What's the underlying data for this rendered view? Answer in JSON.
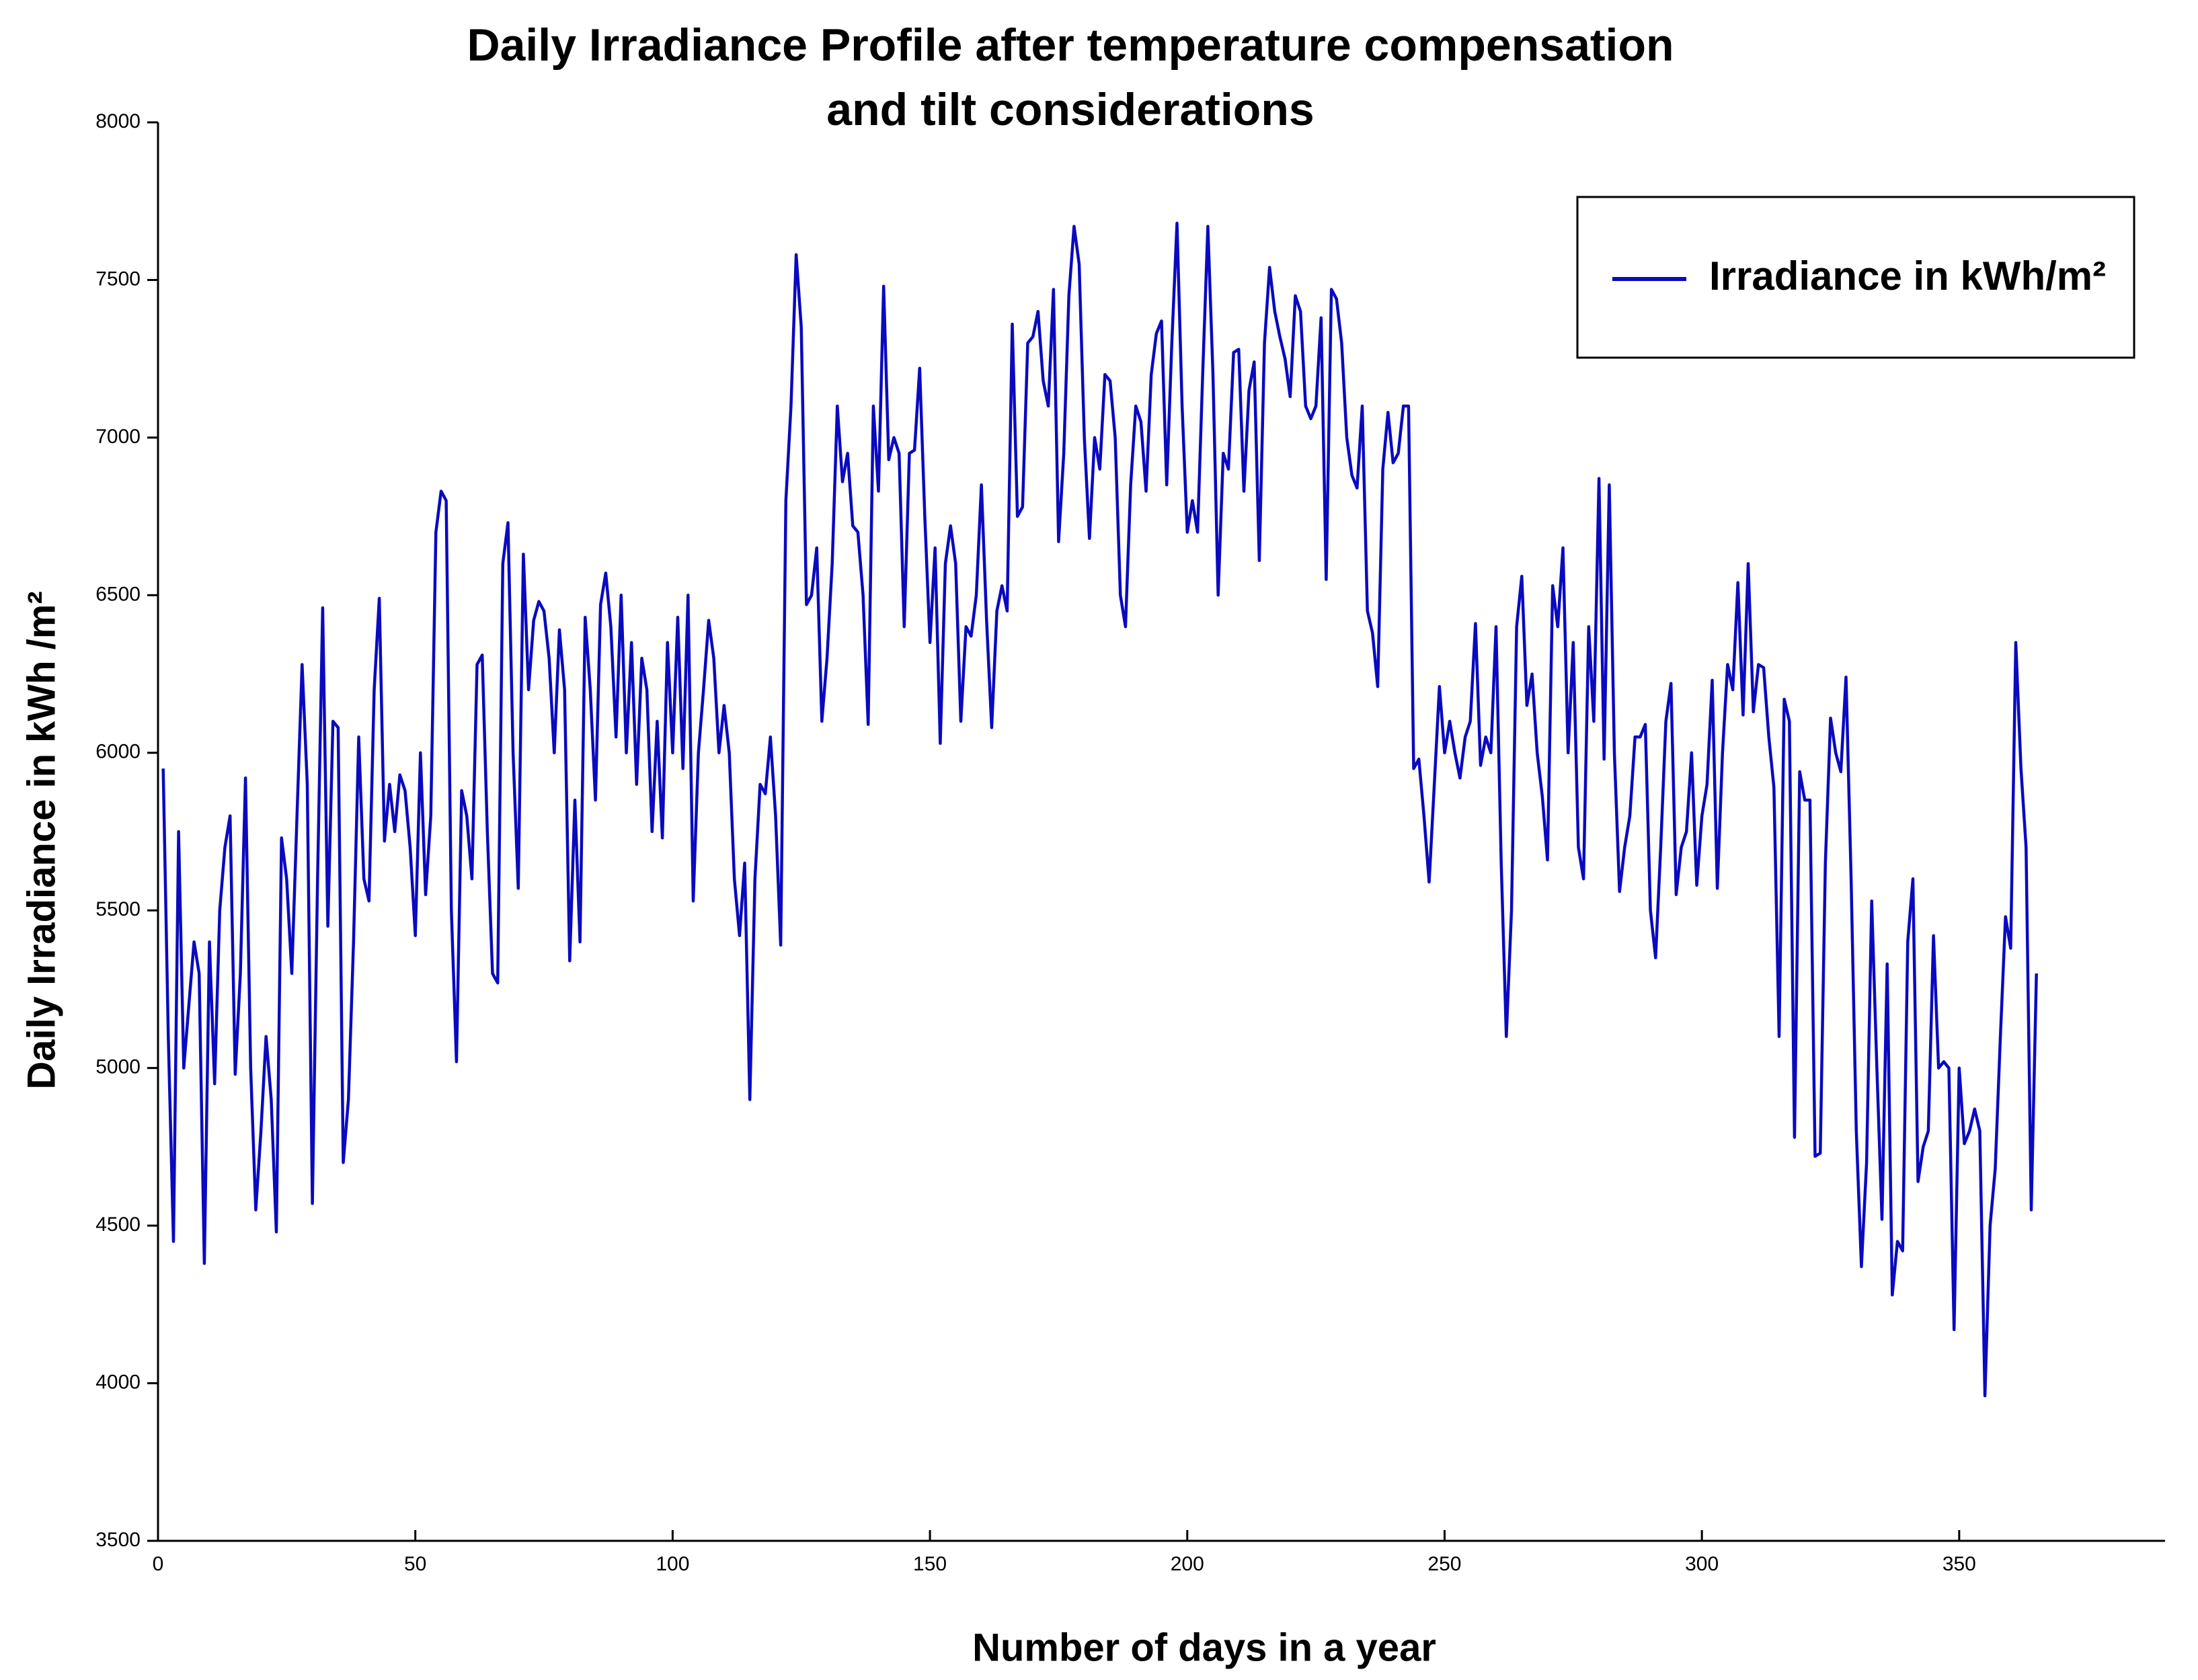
{
  "chart_data": {
    "type": "line",
    "title": [
      "Daily Irradiance Profile after temperature compensation",
      "and tilt considerations"
    ],
    "xlabel": "Number of days in a year",
    "ylabel": "Daily Irradiance in kWh /m²",
    "xlim": [
      0,
      390
    ],
    "xticks": [
      0,
      50,
      100,
      150,
      200,
      250,
      300,
      350
    ],
    "ylim": [
      3500,
      8000
    ],
    "yticks": [
      3500,
      4000,
      4500,
      5000,
      5500,
      6000,
      6500,
      7000,
      7500,
      8000
    ],
    "legend": "upper right",
    "x": [
      1,
      2,
      3,
      4,
      5,
      6,
      7,
      8,
      9,
      10,
      11,
      12,
      13,
      14,
      15,
      16,
      17,
      18,
      19,
      20,
      21,
      22,
      23,
      24,
      25,
      26,
      27,
      28,
      29,
      30,
      31,
      32,
      33,
      34,
      35,
      36,
      37,
      38,
      39,
      40,
      41,
      42,
      43,
      44,
      45,
      46,
      47,
      48,
      49,
      50,
      51,
      52,
      53,
      54,
      55,
      56,
      57,
      58,
      59,
      60,
      61,
      62,
      63,
      64,
      65,
      66,
      67,
      68,
      69,
      70,
      71,
      72,
      73,
      74,
      75,
      76,
      77,
      78,
      79,
      80,
      81,
      82,
      83,
      84,
      85,
      86,
      87,
      88,
      89,
      90,
      91,
      92,
      93,
      94,
      95,
      96,
      97,
      98,
      99,
      100,
      101,
      102,
      103,
      104,
      105,
      106,
      107,
      108,
      109,
      110,
      111,
      112,
      113,
      114,
      115,
      116,
      117,
      118,
      119,
      120,
      121,
      122,
      123,
      124,
      125,
      126,
      127,
      128,
      129,
      130,
      131,
      132,
      133,
      134,
      135,
      136,
      137,
      138,
      139,
      140,
      141,
      142,
      143,
      144,
      145,
      146,
      147,
      148,
      149,
      150,
      151,
      152,
      153,
      154,
      155,
      156,
      157,
      158,
      159,
      160,
      161,
      162,
      163,
      164,
      165,
      166,
      167,
      168,
      169,
      170,
      171,
      172,
      173,
      174,
      175,
      176,
      177,
      178,
      179,
      180,
      181,
      182,
      183,
      184,
      185,
      186,
      187,
      188,
      189,
      190,
      191,
      192,
      193,
      194,
      195,
      196,
      197,
      198,
      199,
      200,
      201,
      202,
      203,
      204,
      205,
      206,
      207,
      208,
      209,
      210,
      211,
      212,
      213,
      214,
      215,
      216,
      217,
      218,
      219,
      220,
      221,
      222,
      223,
      224,
      225,
      226,
      227,
      228,
      229,
      230,
      231,
      232,
      233,
      234,
      235,
      236,
      237,
      238,
      239,
      240,
      241,
      242,
      243,
      244,
      245,
      246,
      247,
      248,
      249,
      250,
      251,
      252,
      253,
      254,
      255,
      256,
      257,
      258,
      259,
      260,
      261,
      262,
      263,
      264,
      265,
      266,
      267,
      268,
      269,
      270,
      271,
      272,
      273,
      274,
      275,
      276,
      277,
      278,
      279,
      280,
      281,
      282,
      283,
      284,
      285,
      286,
      287,
      288,
      289,
      290,
      291,
      292,
      293,
      294,
      295,
      296,
      297,
      298,
      299,
      300,
      301,
      302,
      303,
      304,
      305,
      306,
      307,
      308,
      309,
      310,
      311,
      312,
      313,
      314,
      315,
      316,
      317,
      318,
      319,
      320,
      321,
      322,
      323,
      324,
      325,
      326,
      327,
      328,
      329,
      330,
      331,
      332,
      333,
      334,
      335,
      336,
      337,
      338,
      339,
      340,
      341,
      342,
      343,
      344,
      345,
      346,
      347,
      348,
      349,
      350,
      351,
      352,
      353,
      354,
      355,
      356,
      357,
      358,
      359,
      360,
      361,
      362,
      363,
      364,
      365
    ],
    "series": [
      {
        "name": "Irradiance in kWh/m²",
        "color": "#0a0ac0",
        "values": [
          5950,
          5100,
          4450,
          5750,
          5000,
          5200,
          5400,
          5300,
          4380,
          5400,
          4950,
          5500,
          5700,
          5800,
          4980,
          5300,
          5920,
          5000,
          4550,
          4800,
          5100,
          4900,
          4480,
          5730,
          5600,
          5300,
          5800,
          6280,
          5900,
          4570,
          5600,
          6460,
          5450,
          6100,
          6080,
          4700,
          4900,
          5400,
          6050,
          5600,
          5530,
          6200,
          6490,
          5720,
          5900,
          5750,
          5930,
          5880,
          5700,
          5420,
          6000,
          5550,
          5800,
          6700,
          6830,
          6800,
          5500,
          5020,
          5880,
          5800,
          5600,
          6280,
          6310,
          5750,
          5300,
          5270,
          6600,
          6730,
          6000,
          5570,
          6630,
          6200,
          6420,
          6480,
          6450,
          6300,
          6000,
          6390,
          6200,
          5340,
          5850,
          5400,
          6430,
          6200,
          5850,
          6470,
          6570,
          6400,
          6050,
          6500,
          6000,
          6350,
          5900,
          6300,
          6200,
          5750,
          6100,
          5730,
          6350,
          6000,
          6430,
          5950,
          6500,
          5530,
          6000,
          6200,
          6420,
          6300,
          6000,
          6150,
          6000,
          5600,
          5420,
          5650,
          4900,
          5600,
          5900,
          5870,
          6050,
          5800,
          5390,
          6800,
          7100,
          7580,
          7350,
          6470,
          6500,
          6650,
          6100,
          6300,
          6600,
          7100,
          6860,
          6950,
          6720,
          6700,
          6500,
          6090,
          7100,
          6830,
          7480,
          6930,
          7000,
          6950,
          6400,
          6950,
          6960,
          7220,
          6750,
          6350,
          6650,
          6030,
          6600,
          6720,
          6600,
          6100,
          6400,
          6370,
          6500,
          6850,
          6420,
          6080,
          6450,
          6530,
          6450,
          7360,
          6750,
          6780,
          7300,
          7320,
          7400,
          7180,
          7100,
          7470,
          6670,
          6950,
          7450,
          7670,
          7550,
          7000,
          6680,
          7000,
          6900,
          7200,
          7180,
          7000,
          6500,
          6400,
          6850,
          7100,
          7050,
          6830,
          7200,
          7330,
          7370,
          6850,
          7300,
          7680,
          7100,
          6700,
          6800,
          6700,
          7200,
          7670,
          7200,
          6500,
          6950,
          6900,
          7270,
          7280,
          6830,
          7150,
          7240,
          6610,
          7300,
          7540,
          7400,
          7320,
          7250,
          7130,
          7450,
          7400,
          7100,
          7060,
          7100,
          7380,
          6550,
          7470,
          7440,
          7300,
          7000,
          6880,
          6840,
          7100,
          6450,
          6380,
          6210,
          6900,
          7080,
          6920,
          6950,
          7100,
          7100,
          5950,
          5980,
          5800,
          5590,
          5900,
          6210,
          6000,
          6100,
          6000,
          5920,
          6050,
          6100,
          6410,
          5960,
          6050,
          6000,
          6400,
          5650,
          5100,
          5500,
          6400,
          6560,
          6150,
          6250,
          6000,
          5860,
          5660,
          6530,
          6400,
          6650,
          6000,
          6350,
          5700,
          5600,
          6400,
          6100,
          6870,
          5980,
          6850,
          6000,
          5560,
          5700,
          5800,
          6050,
          6050,
          6090,
          5500,
          5350,
          5700,
          6100,
          6220,
          5550,
          5700,
          5750,
          6000,
          5580,
          5800,
          5900,
          6230,
          5570,
          6000,
          6280,
          6200,
          6540,
          6120,
          6600,
          6130,
          6280,
          6270,
          6050,
          5890,
          5100,
          6170,
          6100,
          4780,
          5940,
          5850,
          5850,
          4720,
          4730,
          5650,
          6110,
          6000,
          5940,
          6240,
          5600,
          4800,
          4370,
          4700,
          5530,
          5000,
          4520,
          5330,
          4280,
          4450,
          4420,
          5400,
          5600,
          4640,
          4750,
          4800,
          5420,
          5000,
          5020,
          5000,
          4170,
          5000,
          4760,
          4800,
          4870,
          4800,
          3960,
          4500,
          4680,
          5100,
          5480,
          5380,
          6350,
          5950,
          5700,
          4550,
          5300
        ]
      }
    ]
  }
}
